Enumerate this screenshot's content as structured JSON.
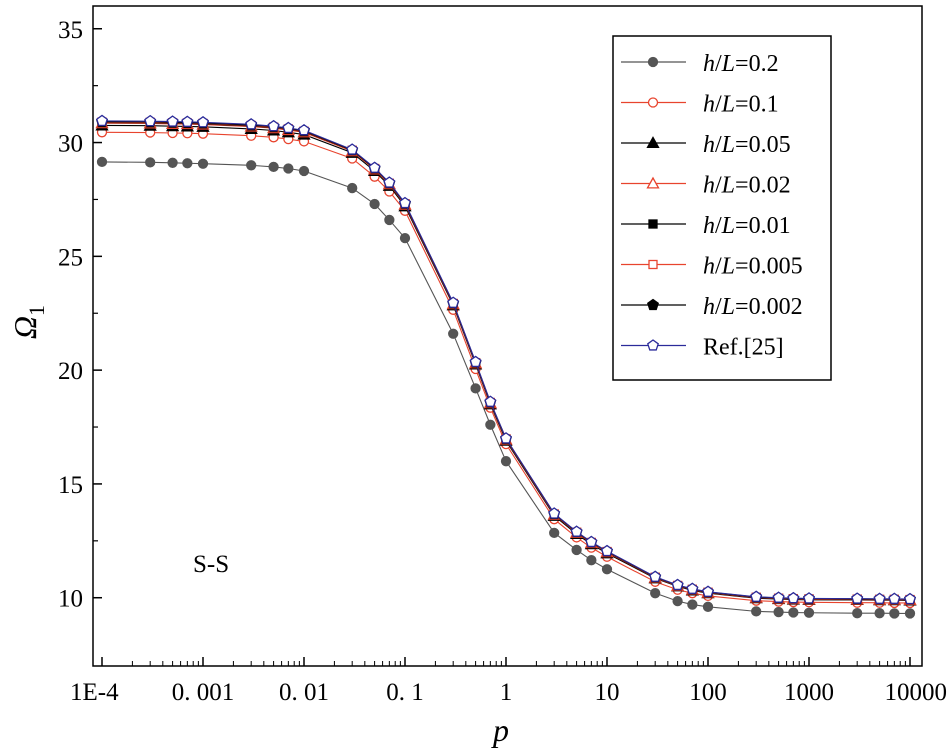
{
  "chart_data": {
    "type": "line",
    "title": "",
    "xlabel": "p",
    "ylabel": "Ω",
    "ylabel_sub": "1",
    "xscale": "log",
    "xlim": [
      0.0001,
      10000
    ],
    "ylim": [
      7,
      36
    ],
    "grid": false,
    "legend_position": "top-right",
    "x_ticks": [
      {
        "value": 0.0001,
        "label": "1E-4"
      },
      {
        "value": 0.001,
        "label": "0. 001"
      },
      {
        "value": 0.01,
        "label": "0. 01"
      },
      {
        "value": 0.1,
        "label": "0. 1"
      },
      {
        "value": 1,
        "label": "1"
      },
      {
        "value": 10,
        "label": "10"
      },
      {
        "value": 100,
        "label": "100"
      },
      {
        "value": 1000,
        "label": "1000"
      },
      {
        "value": 10000,
        "label": "10000"
      }
    ],
    "y_ticks": [
      {
        "value": 10,
        "label": "10"
      },
      {
        "value": 15,
        "label": "15"
      },
      {
        "value": 20,
        "label": "20"
      },
      {
        "value": 25,
        "label": "25"
      },
      {
        "value": 30,
        "label": "30"
      },
      {
        "value": 35,
        "label": "35"
      }
    ],
    "annotation": "S-S",
    "x": [
      0.0001,
      0.0003,
      0.0005,
      0.0007,
      0.001,
      0.003,
      0.005,
      0.007,
      0.01,
      0.03,
      0.05,
      0.07,
      0.1,
      0.3,
      0.5,
      0.7,
      1,
      3,
      5,
      7,
      10,
      30,
      50,
      70,
      100,
      300,
      500,
      700,
      1000,
      3000,
      5000,
      7000,
      10000
    ],
    "series": [
      {
        "name": "h/L=0.2",
        "label_parts": [
          "h",
          "/",
          "L",
          "=0.2"
        ],
        "color": "#555555",
        "marker": "filled-circle",
        "values": [
          29.15,
          29.13,
          29.11,
          29.09,
          29.07,
          29.0,
          28.93,
          28.86,
          28.75,
          28.0,
          27.3,
          26.6,
          25.8,
          21.6,
          19.2,
          17.6,
          16.0,
          12.85,
          12.1,
          11.65,
          11.25,
          10.2,
          9.85,
          9.7,
          9.6,
          9.4,
          9.37,
          9.35,
          9.34,
          9.32,
          9.32,
          9.31,
          9.31
        ]
      },
      {
        "name": "h/L=0.1",
        "label_parts": [
          "h",
          "/",
          "L",
          "=0.1"
        ],
        "color": "#e8442e",
        "marker": "open-circle",
        "values": [
          30.45,
          30.44,
          30.42,
          30.41,
          30.39,
          30.3,
          30.23,
          30.15,
          30.05,
          29.3,
          28.5,
          27.85,
          27.0,
          22.65,
          20.05,
          18.35,
          16.75,
          13.45,
          12.65,
          12.2,
          11.8,
          10.7,
          10.35,
          10.2,
          10.08,
          9.87,
          9.83,
          9.81,
          9.8,
          9.78,
          9.78,
          9.77,
          9.77
        ]
      },
      {
        "name": "h/L=0.05",
        "label_parts": [
          "h",
          "/",
          "L",
          "=0.05"
        ],
        "color": "#000000",
        "marker": "filled-triangle",
        "values": [
          30.75,
          30.74,
          30.72,
          30.71,
          30.69,
          30.6,
          30.53,
          30.45,
          30.35,
          29.55,
          28.75,
          28.1,
          27.2,
          22.85,
          20.25,
          18.5,
          16.9,
          13.6,
          12.8,
          12.35,
          11.95,
          10.85,
          10.5,
          10.32,
          10.2,
          9.98,
          9.94,
          9.92,
          9.91,
          9.9,
          9.89,
          9.89,
          9.88
        ]
      },
      {
        "name": "h/L=0.02",
        "label_parts": [
          "h",
          "/",
          "L",
          "=0.02"
        ],
        "color": "#e8442e",
        "marker": "open-triangle",
        "values": [
          30.85,
          30.84,
          30.82,
          30.81,
          30.79,
          30.7,
          30.63,
          30.55,
          30.45,
          29.62,
          28.82,
          28.17,
          27.27,
          22.9,
          20.3,
          18.55,
          16.95,
          13.65,
          12.85,
          12.4,
          12.0,
          10.88,
          10.52,
          10.35,
          10.22,
          10.0,
          9.96,
          9.94,
          9.93,
          9.92,
          9.91,
          9.91,
          9.9
        ]
      },
      {
        "name": "h/L=0.01",
        "label_parts": [
          "h",
          "/",
          "L",
          "=0.01"
        ],
        "color": "#000000",
        "marker": "filled-square",
        "values": [
          30.88,
          30.87,
          30.85,
          30.84,
          30.82,
          30.73,
          30.66,
          30.58,
          30.48,
          29.65,
          28.85,
          28.2,
          27.3,
          22.92,
          20.32,
          18.57,
          16.97,
          13.67,
          12.87,
          12.42,
          12.02,
          10.89,
          10.53,
          10.36,
          10.23,
          10.01,
          9.97,
          9.95,
          9.94,
          9.93,
          9.92,
          9.92,
          9.91
        ]
      },
      {
        "name": "h/L=0.005",
        "label_parts": [
          "h",
          "/",
          "L",
          "=0.005"
        ],
        "color": "#e8442e",
        "marker": "open-square",
        "values": [
          30.9,
          30.89,
          30.87,
          30.86,
          30.84,
          30.75,
          30.68,
          30.6,
          30.5,
          29.66,
          28.86,
          28.21,
          27.31,
          22.93,
          20.33,
          18.58,
          16.98,
          13.68,
          12.88,
          12.43,
          12.03,
          10.9,
          10.54,
          10.37,
          10.24,
          10.02,
          9.98,
          9.96,
          9.95,
          9.94,
          9.93,
          9.93,
          9.92
        ]
      },
      {
        "name": "h/L=0.002",
        "label_parts": [
          "h",
          "/",
          "L",
          "=0.002"
        ],
        "color": "#000000",
        "marker": "filled-pentagon",
        "values": [
          30.92,
          30.91,
          30.89,
          30.88,
          30.86,
          30.77,
          30.7,
          30.62,
          30.52,
          29.67,
          28.87,
          28.22,
          27.32,
          22.94,
          20.34,
          18.59,
          16.99,
          13.69,
          12.89,
          12.44,
          12.04,
          10.91,
          10.55,
          10.38,
          10.25,
          10.03,
          9.99,
          9.97,
          9.96,
          9.95,
          9.94,
          9.94,
          9.93
        ]
      },
      {
        "name": "Ref.[25]",
        "label_parts": [
          "Ref.[25]"
        ],
        "color": "#2b2b9a",
        "marker": "open-pentagon",
        "values": [
          30.95,
          30.94,
          30.92,
          30.91,
          30.89,
          30.8,
          30.72,
          30.64,
          30.54,
          29.69,
          28.89,
          28.24,
          27.34,
          22.96,
          20.36,
          18.61,
          17.0,
          13.7,
          12.9,
          12.45,
          12.05,
          10.92,
          10.56,
          10.39,
          10.26,
          10.04,
          10.0,
          9.98,
          9.97,
          9.96,
          9.95,
          9.95,
          9.94
        ]
      }
    ]
  }
}
